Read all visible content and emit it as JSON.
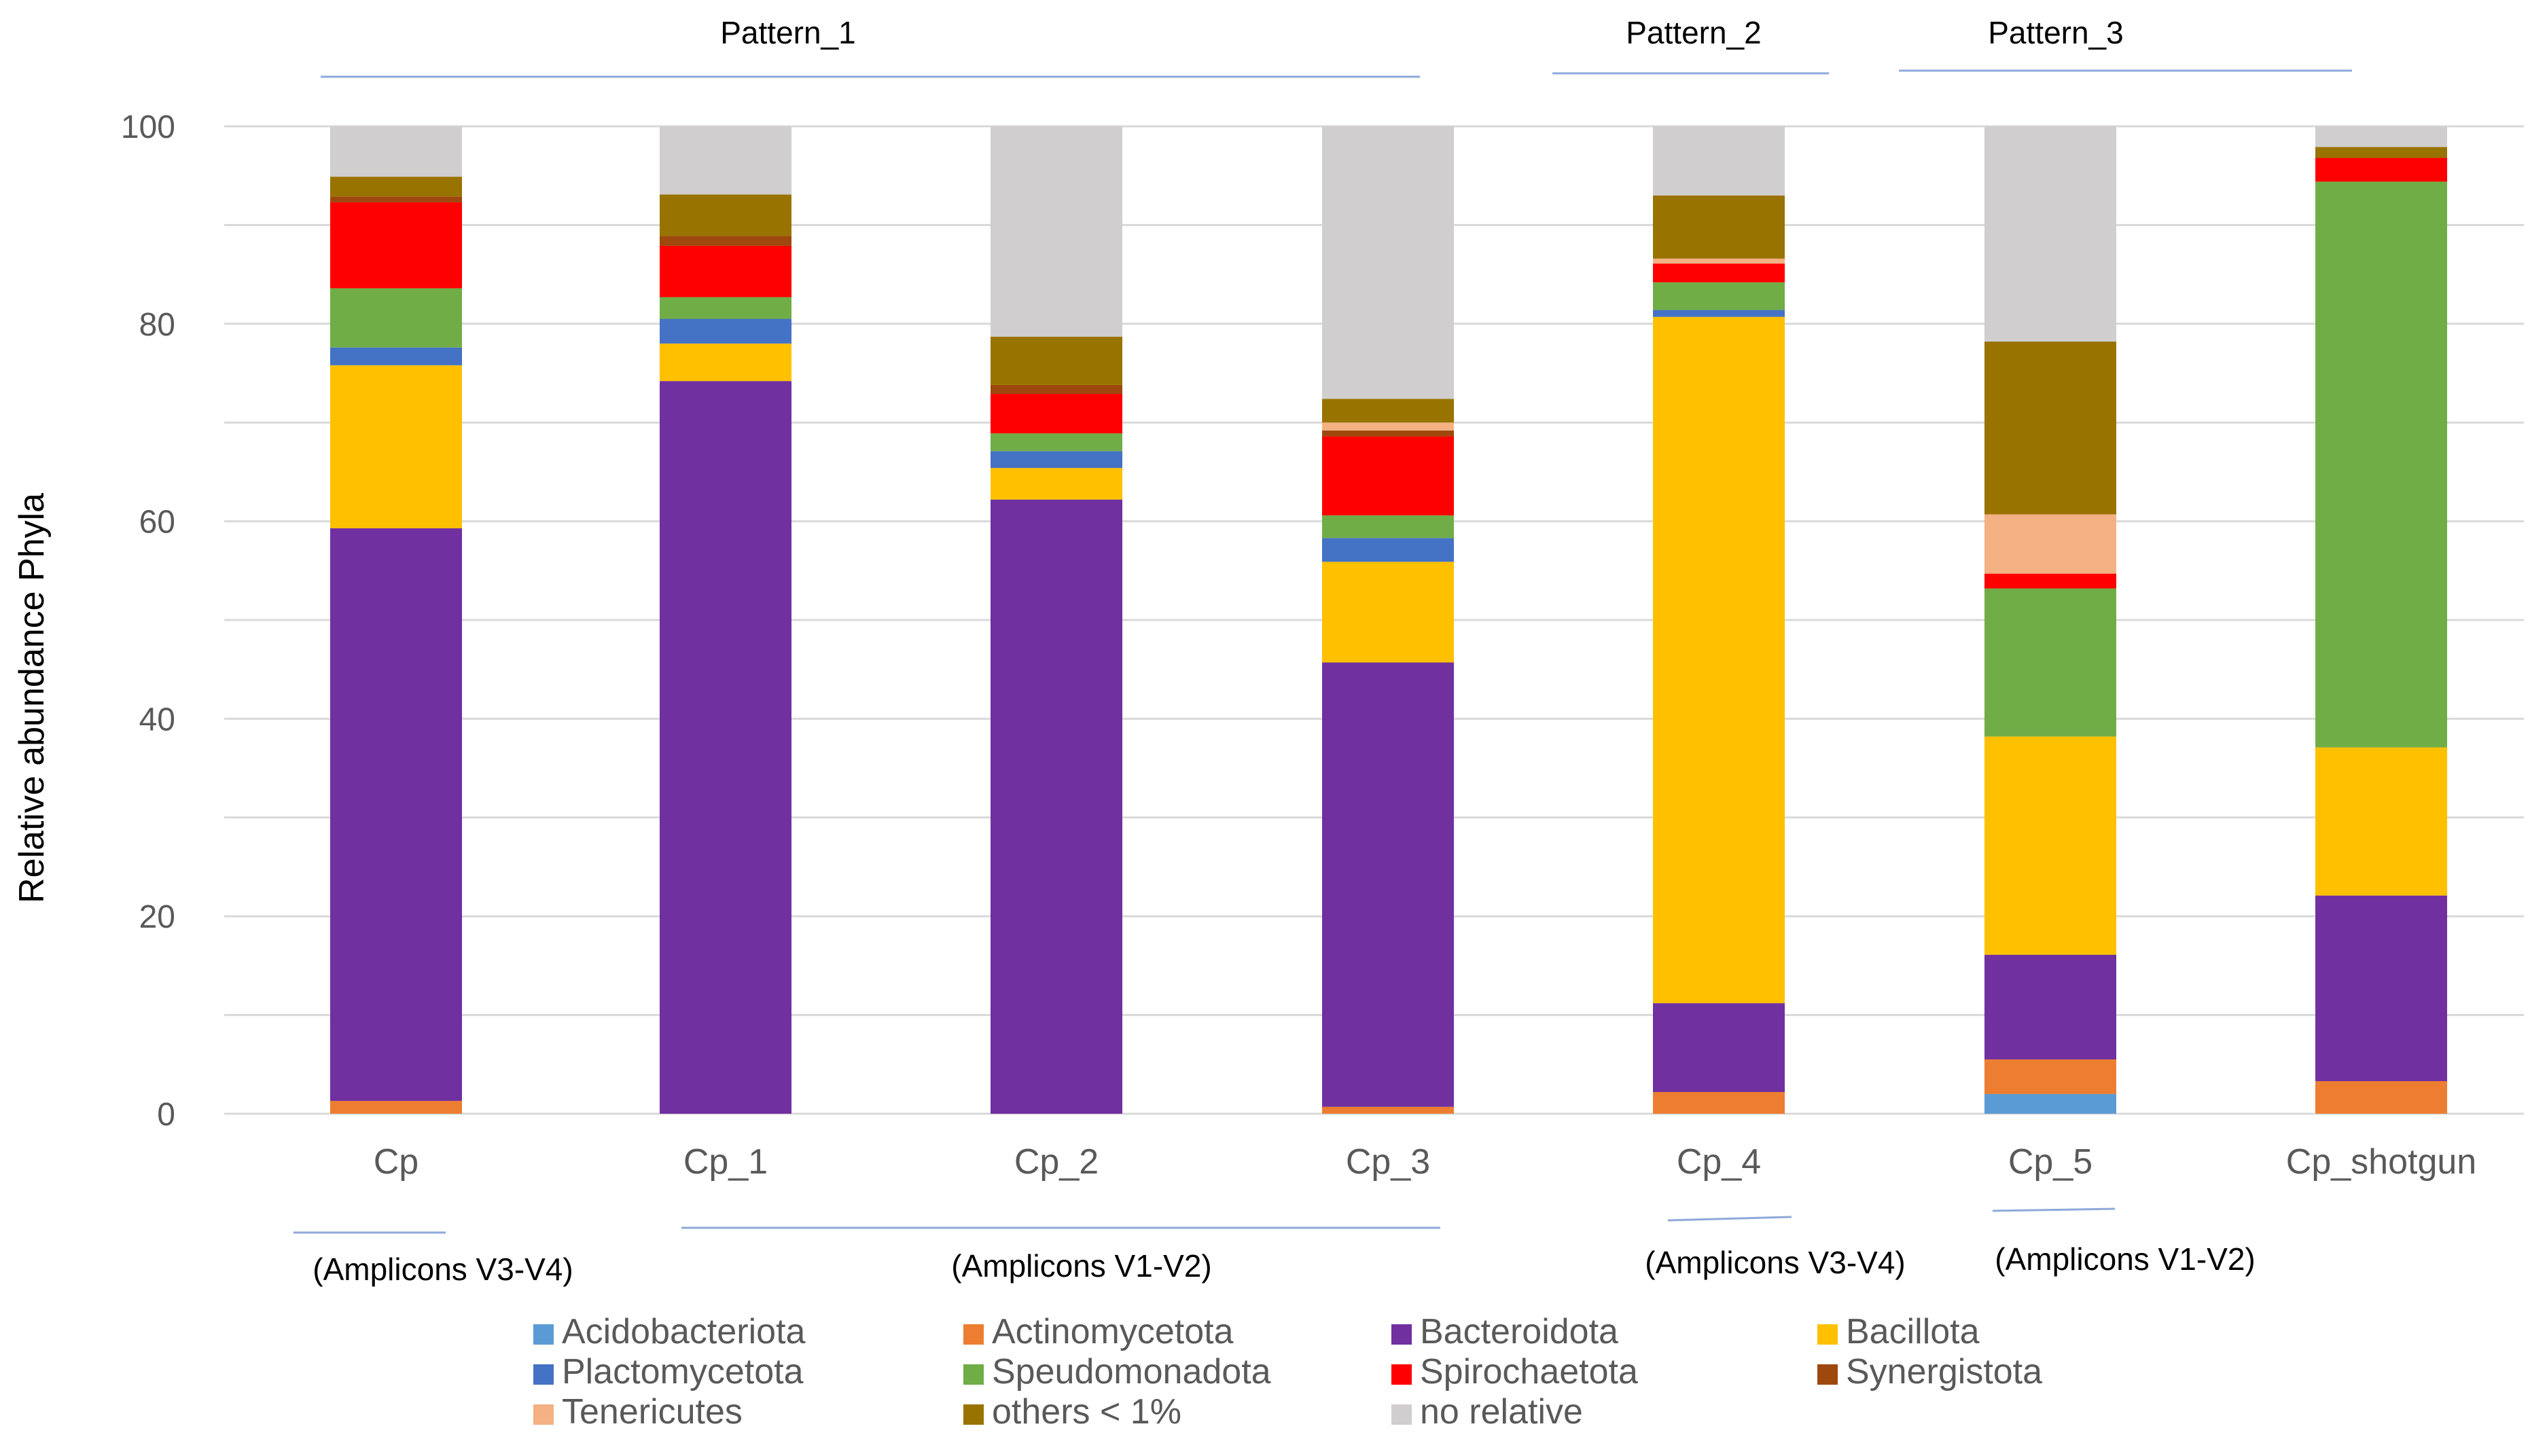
{
  "chart_data": {
    "type": "bar",
    "stacked": true,
    "title": "",
    "xlabel": "",
    "ylabel": "Relative abundance Phyla",
    "ylim": [
      0,
      100
    ],
    "yticks": [
      0,
      20,
      40,
      60,
      80,
      100
    ],
    "grid": true,
    "legend_position": "bottom",
    "categories": [
      "Cp",
      "Cp_1",
      "Cp_2",
      "Cp_3",
      "Cp_4",
      "Cp_5",
      "Cp_shotgun"
    ],
    "series": [
      {
        "name": "Acidobacteriota",
        "color": "#5B9BD5",
        "values": [
          0,
          0,
          0,
          0,
          0,
          2.0,
          0
        ]
      },
      {
        "name": "Actinomycetota",
        "color": "#ED7D31",
        "values": [
          1.3,
          0,
          0,
          0.7,
          2.2,
          3.5,
          3.3
        ]
      },
      {
        "name": "Bacteroidota",
        "color": "#7030A0",
        "values": [
          58.0,
          74.2,
          62.2,
          45.0,
          9.0,
          10.6,
          18.8
        ]
      },
      {
        "name": "Bacillota",
        "color": "#FFC000",
        "values": [
          16.5,
          3.8,
          3.2,
          10.2,
          69.5,
          22.1,
          15.0
        ]
      },
      {
        "name": "Plactomycetota",
        "color": "#4472C4",
        "values": [
          1.8,
          2.5,
          1.7,
          2.4,
          0.7,
          0,
          0
        ]
      },
      {
        "name": "Speudomonadota",
        "color": "#70AD47",
        "values": [
          6.0,
          2.2,
          1.8,
          2.3,
          2.8,
          15.0,
          57.3
        ]
      },
      {
        "name": "Spirochaetota",
        "color": "#FF0000",
        "values": [
          8.7,
          5.2,
          4.0,
          8.0,
          1.9,
          1.5,
          2.4
        ]
      },
      {
        "name": "Synergistota",
        "color": "#9E480E",
        "values": [
          0.6,
          1.0,
          0.9,
          0.6,
          0,
          0,
          0
        ]
      },
      {
        "name": "Tenericutes",
        "color": "#F4B183",
        "values": [
          0,
          0,
          0,
          0.8,
          0.5,
          6.0,
          0
        ]
      },
      {
        "name": "others < 1%",
        "color": "#997300",
        "values": [
          2.0,
          4.2,
          4.9,
          2.4,
          6.4,
          17.5,
          1.1
        ]
      },
      {
        "name": "no relative",
        "color": "#D0CECE",
        "values": [
          5.1,
          6.9,
          21.3,
          27.6,
          7.0,
          21.8,
          2.1
        ]
      }
    ],
    "annotations": {
      "patterns": [
        {
          "label": "Pattern_1"
        },
        {
          "label": "Pattern_2"
        },
        {
          "label": "Pattern_3"
        }
      ],
      "amplicons": [
        {
          "label": "(Amplicons V3-V4)"
        },
        {
          "label": "(Amplicons V1-V2)"
        },
        {
          "label": "(Amplicons V3-V4)"
        },
        {
          "label": "(Amplicons V1-V2)"
        }
      ]
    }
  }
}
